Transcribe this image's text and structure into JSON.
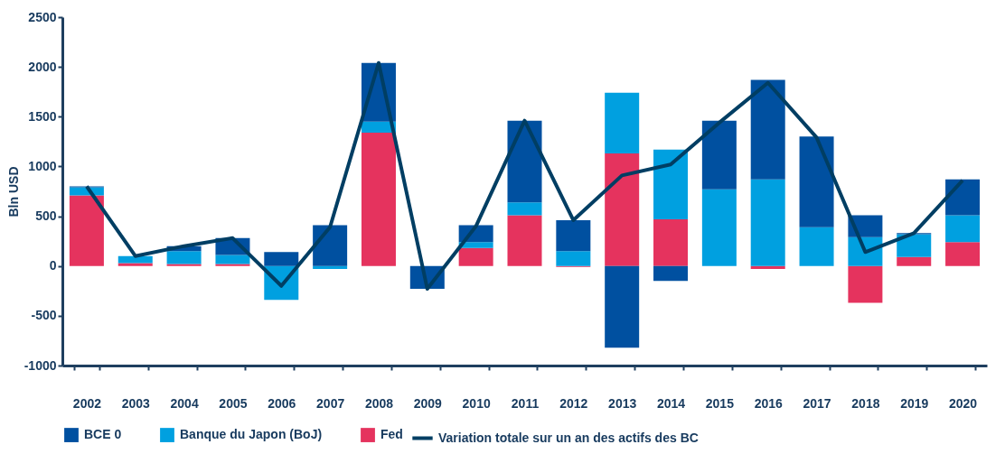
{
  "chart_data": {
    "type": "bar",
    "stacked": true,
    "ylabel": "Bln USD",
    "categories": [
      "2002",
      "2003",
      "2004",
      "2005",
      "2006",
      "2007",
      "2008",
      "2009",
      "2010",
      "2011",
      "2012",
      "2013",
      "2014",
      "2015",
      "2016",
      "2017",
      "2018",
      "2019",
      "2020"
    ],
    "series": [
      {
        "name": "Fed",
        "color": "#e5335e",
        "values": [
          710,
          30,
          20,
          20,
          0,
          0,
          1340,
          0,
          180,
          510,
          -10,
          1130,
          470,
          0,
          -30,
          0,
          -370,
          90,
          240
        ]
      },
      {
        "name": "Banque du Japon (BoJ)",
        "color": "#00a0e0",
        "values": [
          80,
          70,
          130,
          90,
          -340,
          -30,
          110,
          0,
          60,
          130,
          150,
          610,
          700,
          770,
          870,
          390,
          290,
          230,
          270
        ]
      },
      {
        "name": "BCE 0",
        "color": "#0050a0",
        "values": [
          10,
          0,
          50,
          170,
          140,
          410,
          590,
          -230,
          170,
          820,
          310,
          -820,
          -150,
          690,
          1000,
          910,
          220,
          10,
          360
        ]
      },
      {
        "name": "Variation totale sur un an des actifs des BC",
        "type": "line",
        "color": "#003e63",
        "values": [
          800,
          100,
          200,
          280,
          -200,
          390,
          2040,
          -230,
          400,
          1460,
          460,
          910,
          1020,
          1440,
          1840,
          1290,
          140,
          330,
          860
        ]
      }
    ],
    "ylim": [
      -1000,
      2500
    ],
    "yticks": [
      -1000,
      -500,
      0,
      500,
      1000,
      1500,
      2000,
      2500
    ],
    "grid": false,
    "legend": "bottom"
  }
}
